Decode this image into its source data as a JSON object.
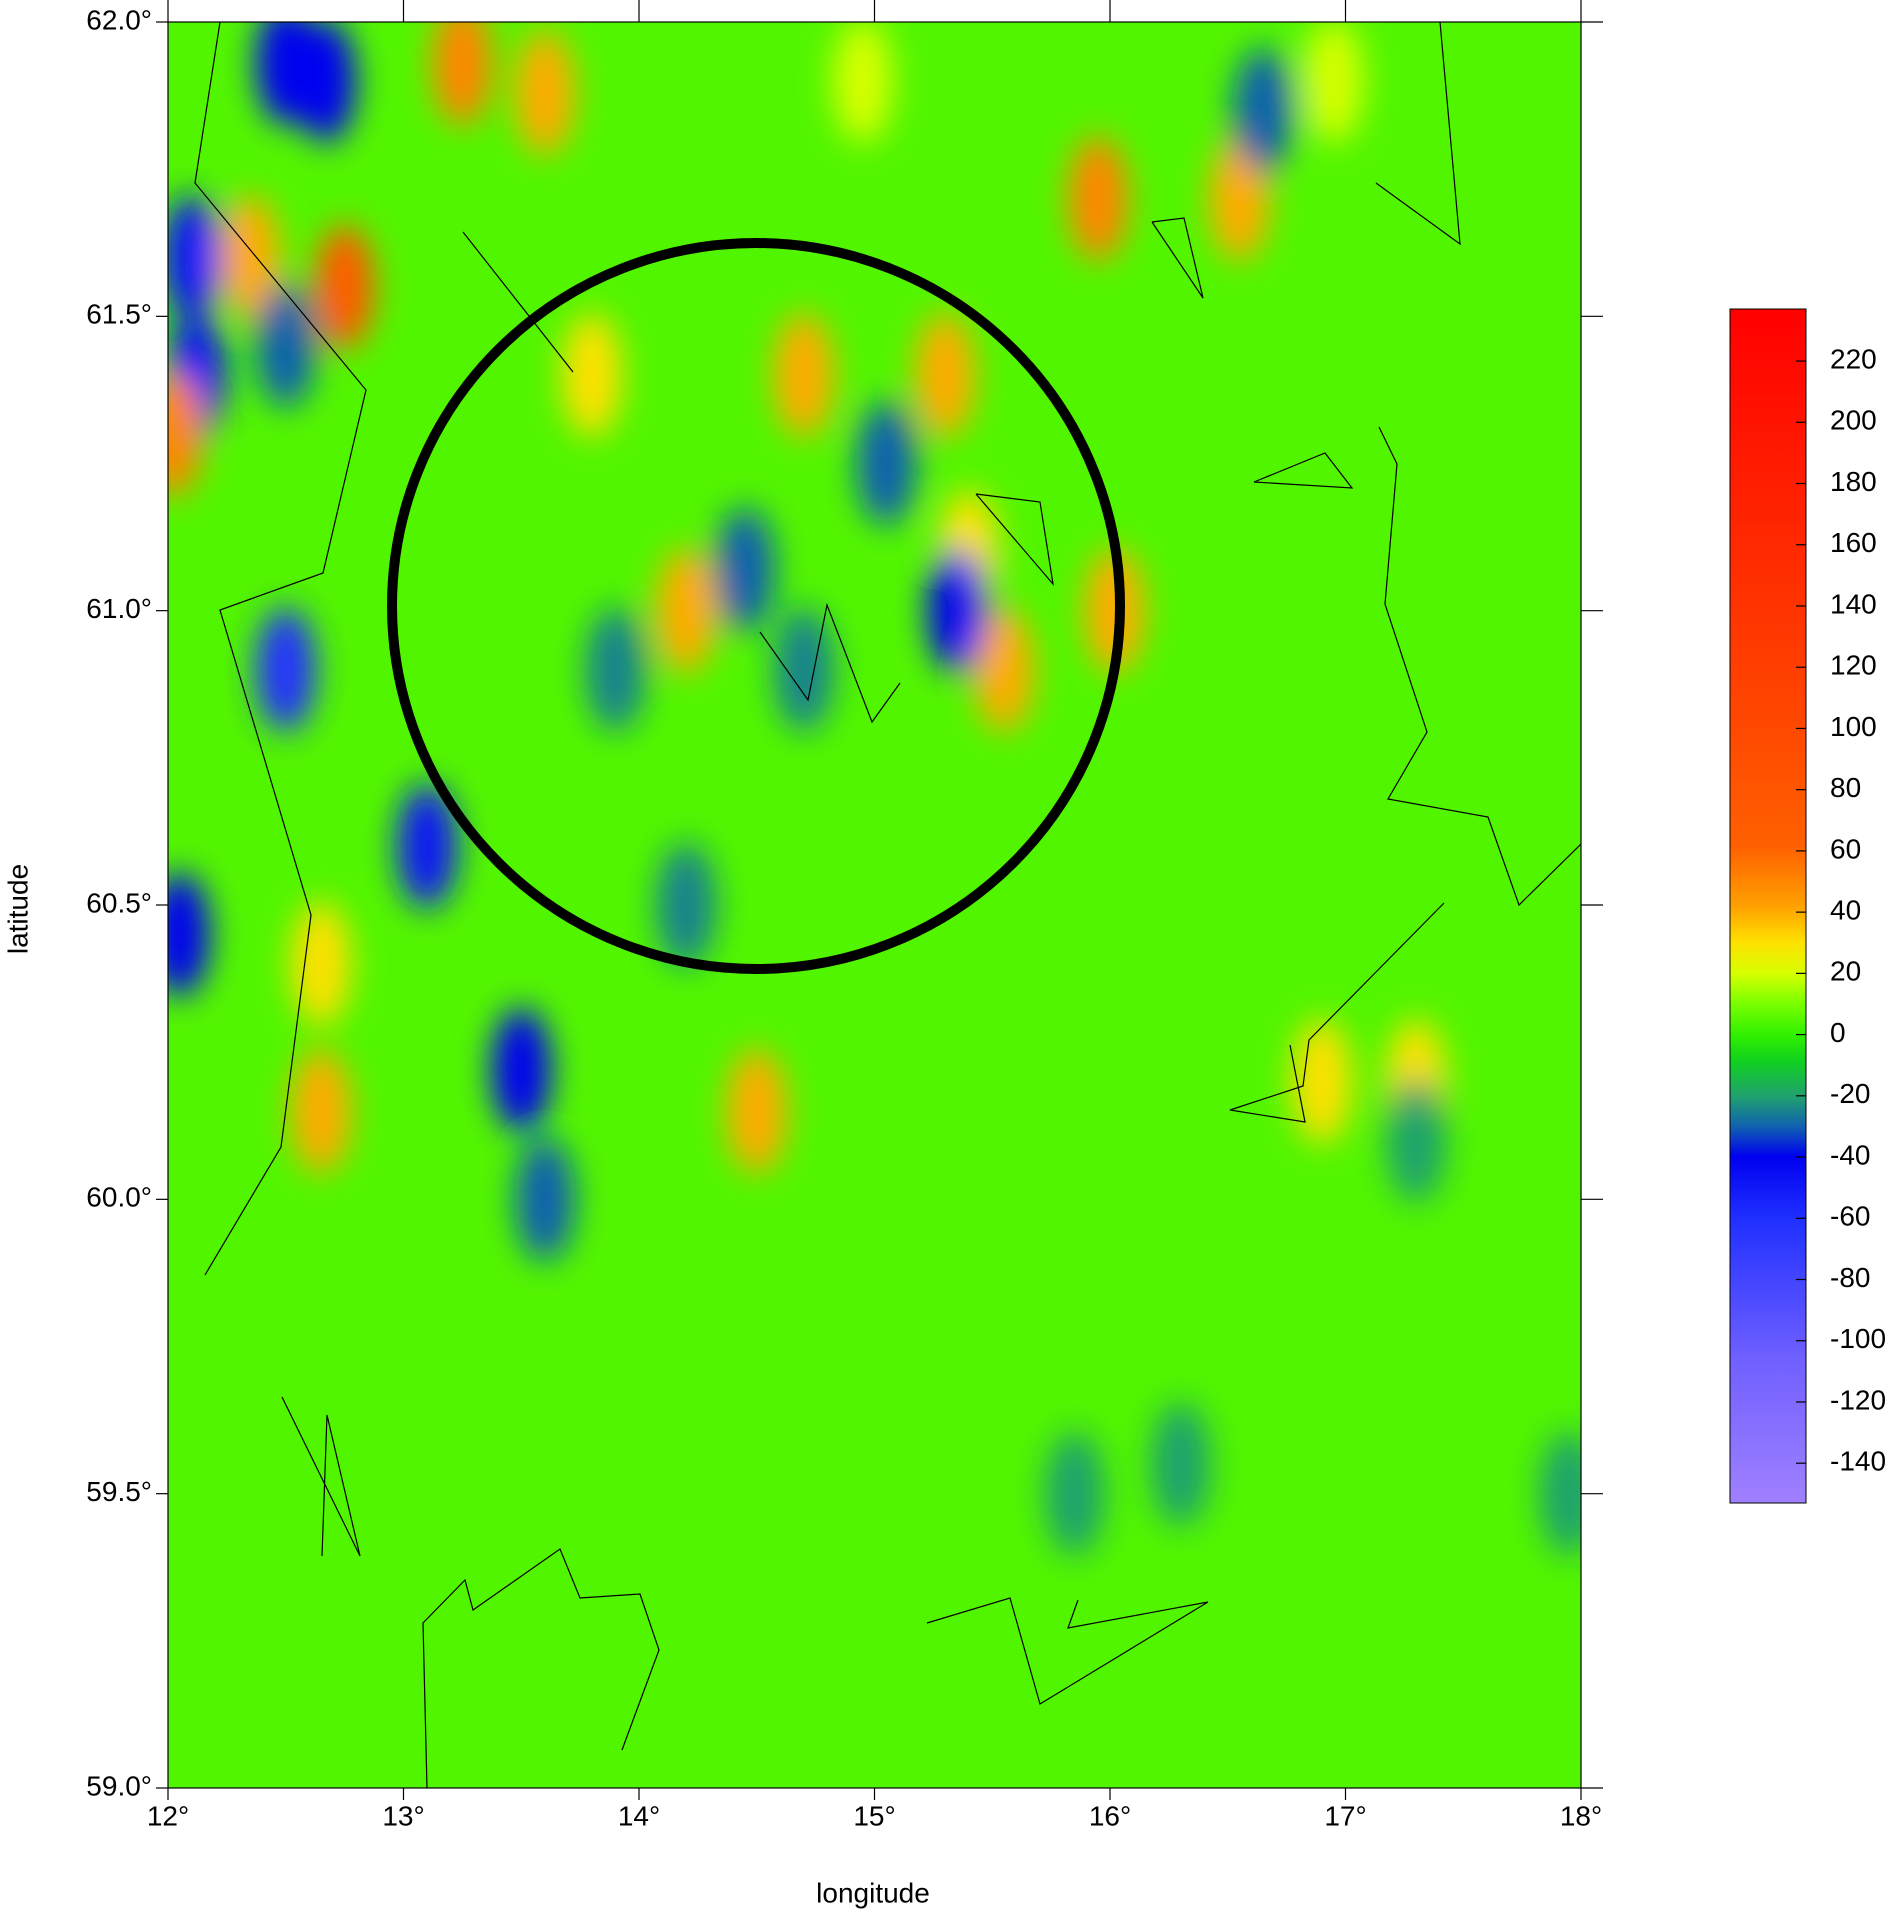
{
  "chart_data": {
    "type": "heatmap",
    "x_label": "longitude",
    "y_label": "latitude",
    "xlim": [
      12,
      18
    ],
    "ylim": [
      59,
      62
    ],
    "xticks": [
      {
        "value": 12,
        "label": "12°"
      },
      {
        "value": 13,
        "label": "13°"
      },
      {
        "value": 14,
        "label": "14°"
      },
      {
        "value": 15,
        "label": "15°"
      },
      {
        "value": 16,
        "label": "16°"
      },
      {
        "value": 17,
        "label": "17°"
      },
      {
        "value": 18,
        "label": "18°"
      }
    ],
    "yticks": [
      {
        "value": 59,
        "label": "59.0°"
      },
      {
        "value": 59.5,
        "label": "59.5°"
      },
      {
        "value": 60,
        "label": "60.0°"
      },
      {
        "value": 60.5,
        "label": "60.5°"
      },
      {
        "value": 61,
        "label": "61.0°"
      },
      {
        "value": 61.5,
        "label": "61.5°"
      },
      {
        "value": 62,
        "label": "62.0°"
      }
    ],
    "zlim": [
      -153,
      237
    ],
    "zticks": [
      -140,
      -120,
      -100,
      -80,
      -60,
      -40,
      -20,
      0,
      20,
      40,
      60,
      80,
      100,
      120,
      140,
      160,
      180,
      200,
      220
    ],
    "points": [
      {
        "lon": 12.75,
        "lat": 61.55,
        "value": 70
      },
      {
        "lon": 12.35,
        "lat": 61.6,
        "value": 40
      },
      {
        "lon": 12.1,
        "lat": 61.6,
        "value": -50
      },
      {
        "lon": 12.12,
        "lat": 61.4,
        "value": -50
      },
      {
        "lon": 12.5,
        "lat": 61.45,
        "value": -30
      },
      {
        "lon": 12.02,
        "lat": 61.3,
        "value": 50
      },
      {
        "lon": 13.25,
        "lat": 61.93,
        "value": 50
      },
      {
        "lon": 13.6,
        "lat": 61.88,
        "value": 40
      },
      {
        "lon": 12.5,
        "lat": 61.93,
        "value": -40
      },
      {
        "lon": 12.67,
        "lat": 61.9,
        "value": -40
      },
      {
        "lon": 12.5,
        "lat": 60.9,
        "value": -60
      },
      {
        "lon": 13.1,
        "lat": 60.6,
        "value": -50
      },
      {
        "lon": 13.5,
        "lat": 60.22,
        "value": -40
      },
      {
        "lon": 13.6,
        "lat": 60.0,
        "value": -30
      },
      {
        "lon": 12.05,
        "lat": 60.45,
        "value": -40
      },
      {
        "lon": 15.95,
        "lat": 61.7,
        "value": 50
      },
      {
        "lon": 16.55,
        "lat": 61.7,
        "value": 40
      },
      {
        "lon": 16.02,
        "lat": 61.0,
        "value": 40
      },
      {
        "lon": 15.4,
        "lat": 61.1,
        "value": 30
      },
      {
        "lon": 14.2,
        "lat": 61.0,
        "value": 40
      },
      {
        "lon": 14.7,
        "lat": 61.4,
        "value": 40
      },
      {
        "lon": 15.3,
        "lat": 61.4,
        "value": 40
      },
      {
        "lon": 13.8,
        "lat": 61.4,
        "value": 30
      },
      {
        "lon": 15.55,
        "lat": 60.9,
        "value": 40
      },
      {
        "lon": 14.5,
        "lat": 60.15,
        "value": 40
      },
      {
        "lon": 12.65,
        "lat": 60.15,
        "value": 40
      },
      {
        "lon": 12.65,
        "lat": 60.4,
        "value": 30
      },
      {
        "lon": 14.45,
        "lat": 61.07,
        "value": -30
      },
      {
        "lon": 15.05,
        "lat": 61.25,
        "value": -30
      },
      {
        "lon": 14.7,
        "lat": 60.9,
        "value": -25
      },
      {
        "lon": 16.65,
        "lat": 61.85,
        "value": -30
      },
      {
        "lon": 15.35,
        "lat": 61.0,
        "value": -40
      },
      {
        "lon": 13.9,
        "lat": 60.9,
        "value": -25
      },
      {
        "lon": 14.2,
        "lat": 60.5,
        "value": -25
      },
      {
        "lon": 16.9,
        "lat": 60.2,
        "value": 30
      },
      {
        "lon": 17.3,
        "lat": 60.2,
        "value": 30
      },
      {
        "lon": 17.3,
        "lat": 60.1,
        "value": -20
      },
      {
        "lon": 17.95,
        "lat": 59.5,
        "value": -20
      },
      {
        "lon": 14.95,
        "lat": 61.9,
        "value": 20
      },
      {
        "lon": 16.95,
        "lat": 61.9,
        "value": 20
      },
      {
        "lon": 15.85,
        "lat": 59.5,
        "value": -20
      },
      {
        "lon": 16.3,
        "lat": 59.55,
        "value": -20
      }
    ]
  }
}
